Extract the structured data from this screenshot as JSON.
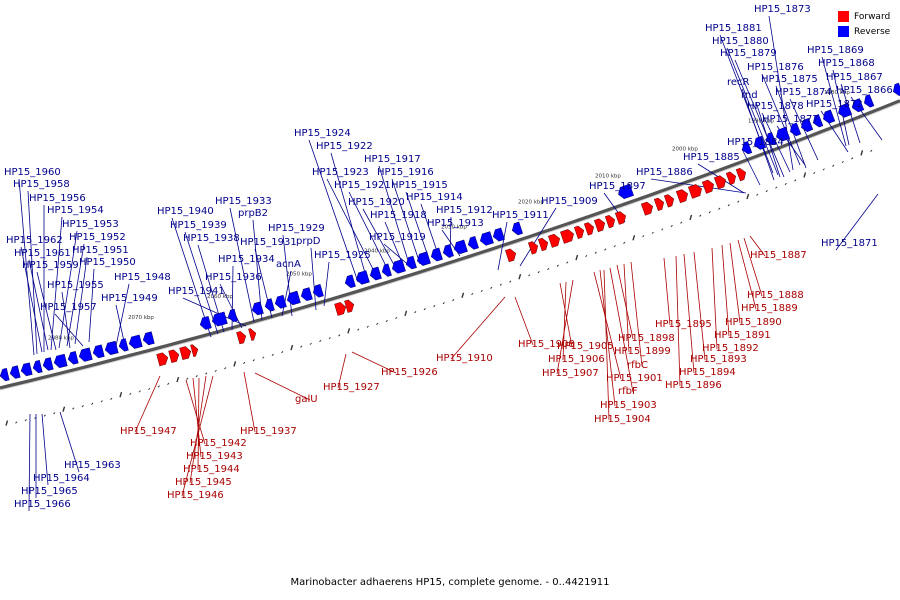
{
  "caption": "Marinobacter adhaerens HP15, complete genome. - 0..4421911",
  "legend": [
    {
      "label": "Forward",
      "color": "#ff0000"
    },
    {
      "label": "Reverse",
      "color": "#0000ff"
    }
  ],
  "colors": {
    "forward": "#ff0000",
    "reverse": "#0000ff",
    "axis": "#555555",
    "forward_label": "#aa0000",
    "reverse_label": "#00008b"
  },
  "scale_labels": [
    "2080 kbp",
    "2070 kbp",
    "2060 kbp",
    "2050 kbp",
    "2040 kbp",
    "2030 kbp",
    "2020 kbp",
    "2010 kbp",
    "2000 kbp",
    "1990 kbp",
    "1980 kbp"
  ],
  "reverse_labels": [
    "HP15_1873",
    "HP15_1881",
    "HP15_1880",
    "HP15_1879",
    "HP15_1876",
    "HP15_1869",
    "HP15_1868",
    "recR",
    "HP15_1875",
    "HP15_1867",
    "rnd",
    "HP15_1874",
    "HP15_1866",
    "HP15_1878",
    "HP15_1872",
    "HP15_1877",
    "HP15_1924",
    "HP15_1884",
    "HP15_1922",
    "HP15_1917",
    "HP15_1923",
    "HP15_1916",
    "HP15_1885",
    "HP15_1960",
    "HP15_1886",
    "HP15_1921",
    "HP15_1915",
    "HP15_1958",
    "HP15_1897",
    "HP15_1933",
    "HP15_1920",
    "HP15_1914",
    "HP15_1956",
    "HP15_1909",
    "HP15_1940",
    "prpB2",
    "HP15_1954",
    "HP15_1918",
    "HP15_1912",
    "HP15_1939",
    "HP15_1929",
    "HP15_1911",
    "HP15_1953",
    "HP15_1913",
    "HP15_1938",
    "HP15_1931",
    "prpD",
    "HP15_1919",
    "HP15_1962",
    "HP15_1952",
    "HP15_1961",
    "HP15_1951",
    "HP15_1934",
    "HP15_1925",
    "acnA",
    "HP15_1959",
    "HP15_1950",
    "HP15_1936",
    "HP15_1948",
    "HP15_1955",
    "HP15_1941",
    "HP15_1949",
    "HP15_1957",
    "HP15_1963",
    "HP15_1964",
    "HP15_1965",
    "HP15_1966",
    "HP15_1871"
  ],
  "forward_labels": [
    "HP15_1887",
    "HP15_1888",
    "HP15_1889",
    "HP15_1890",
    "HP15_1895",
    "HP15_1891",
    "HP15_1898",
    "HP15_1905",
    "HP15_1908",
    "HP15_1892",
    "HP15_1899",
    "HP15_1910",
    "HP15_1906",
    "HP15_1893",
    "HP15_1926",
    "HP15_1907",
    "rfbC",
    "HP15_1894",
    "HP15_1901",
    "HP15_1927",
    "HP15_1896",
    "rfbF",
    "galU",
    "HP15_1903",
    "HP15_1904",
    "HP15_1947",
    "HP15_1937",
    "HP15_1942",
    "HP15_1943",
    "HP15_1944",
    "HP15_1945",
    "HP15_1946"
  ]
}
